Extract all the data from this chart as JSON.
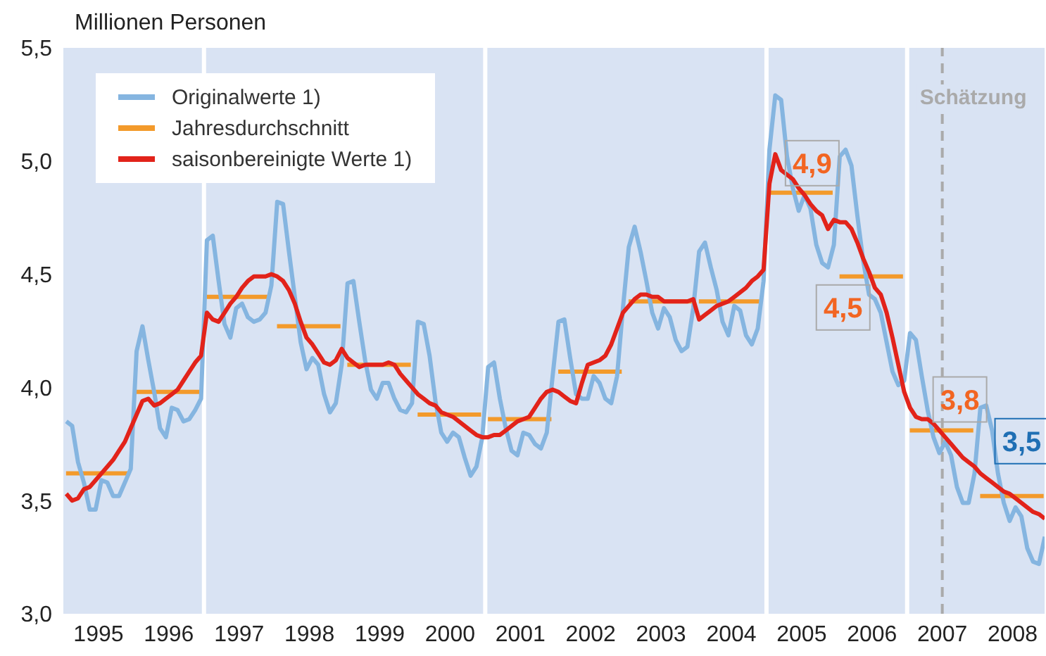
{
  "chart_data": {
    "type": "line",
    "ylabel": "Millionen Personen",
    "x": [
      "1995-01",
      "1995-02",
      "1995-03",
      "1995-04",
      "1995-05",
      "1995-06",
      "1995-07",
      "1995-08",
      "1995-09",
      "1995-10",
      "1995-11",
      "1995-12",
      "1996-01",
      "1996-02",
      "1996-03",
      "1996-04",
      "1996-05",
      "1996-06",
      "1996-07",
      "1996-08",
      "1996-09",
      "1996-10",
      "1996-11",
      "1996-12",
      "1997-01",
      "1997-02",
      "1997-03",
      "1997-04",
      "1997-05",
      "1997-06",
      "1997-07",
      "1997-08",
      "1997-09",
      "1997-10",
      "1997-11",
      "1997-12",
      "1998-01",
      "1998-02",
      "1998-03",
      "1998-04",
      "1998-05",
      "1998-06",
      "1998-07",
      "1998-08",
      "1998-09",
      "1998-10",
      "1998-11",
      "1998-12",
      "1999-01",
      "1999-02",
      "1999-03",
      "1999-04",
      "1999-05",
      "1999-06",
      "1999-07",
      "1999-08",
      "1999-09",
      "1999-10",
      "1999-11",
      "1999-12",
      "2000-01",
      "2000-02",
      "2000-03",
      "2000-04",
      "2000-05",
      "2000-06",
      "2000-07",
      "2000-08",
      "2000-09",
      "2000-10",
      "2000-11",
      "2000-12",
      "2001-01",
      "2001-02",
      "2001-03",
      "2001-04",
      "2001-05",
      "2001-06",
      "2001-07",
      "2001-08",
      "2001-09",
      "2001-10",
      "2001-11",
      "2001-12",
      "2002-01",
      "2002-02",
      "2002-03",
      "2002-04",
      "2002-05",
      "2002-06",
      "2002-07",
      "2002-08",
      "2002-09",
      "2002-10",
      "2002-11",
      "2002-12",
      "2003-01",
      "2003-02",
      "2003-03",
      "2003-04",
      "2003-05",
      "2003-06",
      "2003-07",
      "2003-08",
      "2003-09",
      "2003-10",
      "2003-11",
      "2003-12",
      "2004-01",
      "2004-02",
      "2004-03",
      "2004-04",
      "2004-05",
      "2004-06",
      "2004-07",
      "2004-08",
      "2004-09",
      "2004-10",
      "2004-11",
      "2004-12",
      "2005-01",
      "2005-02",
      "2005-03",
      "2005-04",
      "2005-05",
      "2005-06",
      "2005-07",
      "2005-08",
      "2005-09",
      "2005-10",
      "2005-11",
      "2005-12",
      "2006-01",
      "2006-02",
      "2006-03",
      "2006-04",
      "2006-05",
      "2006-06",
      "2006-07",
      "2006-08",
      "2006-09",
      "2006-10",
      "2006-11",
      "2006-12",
      "2007-01",
      "2007-02",
      "2007-03",
      "2007-04",
      "2007-05",
      "2007-06",
      "2007-07",
      "2007-08",
      "2007-09",
      "2007-10",
      "2007-11",
      "2007-12",
      "2008-01",
      "2008-02",
      "2008-03",
      "2008-04",
      "2008-05",
      "2008-06",
      "2008-07",
      "2008-08",
      "2008-09",
      "2008-10",
      "2008-11",
      "2008-12"
    ],
    "series": [
      {
        "name": "Originalwerte 1)",
        "color": "#85b5e0",
        "values": [
          3.85,
          3.83,
          3.67,
          3.58,
          3.46,
          3.46,
          3.59,
          3.58,
          3.52,
          3.52,
          3.58,
          3.64,
          4.16,
          4.27,
          4.12,
          3.98,
          3.82,
          3.78,
          3.91,
          3.9,
          3.85,
          3.86,
          3.9,
          3.95,
          4.65,
          4.67,
          4.47,
          4.28,
          4.22,
          4.35,
          4.37,
          4.31,
          4.29,
          4.3,
          4.33,
          4.45,
          4.82,
          4.81,
          4.6,
          4.4,
          4.2,
          4.08,
          4.13,
          4.1,
          3.97,
          3.89,
          3.93,
          4.1,
          4.46,
          4.47,
          4.29,
          4.12,
          3.99,
          3.95,
          4.02,
          4.02,
          3.95,
          3.9,
          3.89,
          3.93,
          4.29,
          4.28,
          4.14,
          3.94,
          3.8,
          3.76,
          3.8,
          3.78,
          3.69,
          3.61,
          3.65,
          3.78,
          4.09,
          4.11,
          3.95,
          3.82,
          3.72,
          3.7,
          3.8,
          3.79,
          3.75,
          3.73,
          3.8,
          4.05,
          4.29,
          4.3,
          4.13,
          3.97,
          3.95,
          3.95,
          4.05,
          4.02,
          3.95,
          3.93,
          4.05,
          4.35,
          4.62,
          4.71,
          4.6,
          4.47,
          4.33,
          4.26,
          4.35,
          4.31,
          4.21,
          4.16,
          4.18,
          4.35,
          4.6,
          4.64,
          4.53,
          4.43,
          4.29,
          4.23,
          4.36,
          4.34,
          4.23,
          4.19,
          4.26,
          4.47,
          5.05,
          5.29,
          5.27,
          5.02,
          4.88,
          4.78,
          4.85,
          4.79,
          4.63,
          4.55,
          4.53,
          4.63,
          5.02,
          5.05,
          4.98,
          4.76,
          4.56,
          4.41,
          4.39,
          4.33,
          4.2,
          4.07,
          4.01,
          4.03,
          4.24,
          4.21,
          4.05,
          3.9,
          3.78,
          3.71,
          3.76,
          3.7,
          3.56,
          3.49,
          3.49,
          3.62,
          3.91,
          3.92,
          3.81,
          3.62,
          3.49,
          3.41,
          3.47,
          3.43,
          3.29,
          3.23,
          3.22,
          3.34
        ]
      },
      {
        "name": "Jahresdurchschnitt",
        "color": "#f39a2b",
        "x": [
          "1995-01-15",
          "1995-12-10",
          "1995-12-20",
          "1996-01-15",
          "1996-12-10",
          "1996-12-20",
          "1997-01-15",
          "1997-12-10",
          "1997-12-20",
          "1998-01-15",
          "1998-12-10",
          "1998-12-20",
          "1999-01-15",
          "1999-12-10",
          "1999-12-20",
          "2000-01-15",
          "2000-12-10",
          "2000-12-20",
          "2001-01-15",
          "2001-12-10",
          "2001-12-20",
          "2002-01-15",
          "2002-12-10",
          "2002-12-20",
          "2003-01-15",
          "2003-12-10",
          "2003-12-20",
          "2004-01-15",
          "2004-12-10",
          "2004-12-20",
          "2005-01-15",
          "2005-12-10",
          "2005-12-20",
          "2006-01-15",
          "2006-12-10",
          "2006-12-20",
          "2007-01-15",
          "2007-12-10",
          "2007-12-20",
          "2008-01-15",
          "2008-12-10"
        ],
        "values": [
          3.62,
          3.62,
          null,
          3.98,
          3.98,
          null,
          4.4,
          4.4,
          null,
          4.27,
          4.27,
          null,
          4.1,
          4.1,
          null,
          3.88,
          3.88,
          null,
          3.86,
          3.86,
          null,
          4.07,
          4.07,
          null,
          4.38,
          4.38,
          null,
          4.38,
          4.38,
          null,
          4.86,
          4.86,
          null,
          4.49,
          4.49,
          null,
          3.81,
          3.81,
          null,
          3.52,
          3.52
        ],
        "value_labels": [
          null,
          null,
          null,
          null,
          null,
          null,
          null,
          null,
          null,
          null,
          null,
          null,
          null,
          null,
          null,
          null,
          null,
          null,
          null,
          null,
          null,
          null,
          null,
          null,
          null,
          null,
          null,
          null,
          null,
          null,
          "4,9",
          null,
          null,
          "4,5",
          null,
          null,
          "3,8",
          null,
          null,
          "3,5",
          null
        ]
      },
      {
        "name": "saisonbereinigte Werte 1)",
        "color": "#e2231a",
        "values": [
          3.53,
          3.5,
          3.51,
          3.55,
          3.56,
          3.59,
          3.62,
          3.65,
          3.68,
          3.72,
          3.76,
          3.82,
          3.88,
          3.94,
          3.95,
          3.92,
          3.93,
          3.95,
          3.97,
          3.99,
          4.03,
          4.07,
          4.11,
          4.14,
          4.33,
          4.3,
          4.29,
          4.33,
          4.37,
          4.4,
          4.44,
          4.47,
          4.49,
          4.49,
          4.49,
          4.5,
          4.49,
          4.47,
          4.43,
          4.37,
          4.29,
          4.22,
          4.19,
          4.15,
          4.11,
          4.1,
          4.12,
          4.17,
          4.13,
          4.11,
          4.09,
          4.1,
          4.1,
          4.1,
          4.1,
          4.11,
          4.1,
          4.06,
          4.03,
          4.0,
          3.97,
          3.95,
          3.93,
          3.92,
          3.89,
          3.88,
          3.87,
          3.85,
          3.83,
          3.81,
          3.79,
          3.78,
          3.78,
          3.79,
          3.79,
          3.81,
          3.83,
          3.85,
          3.86,
          3.87,
          3.91,
          3.95,
          3.98,
          3.99,
          3.98,
          3.96,
          3.94,
          3.93,
          4.02,
          4.1,
          4.11,
          4.12,
          4.14,
          4.19,
          4.26,
          4.33,
          4.36,
          4.39,
          4.41,
          4.41,
          4.4,
          4.4,
          4.38,
          4.38,
          4.38,
          4.38,
          4.38,
          4.39,
          4.3,
          4.32,
          4.34,
          4.36,
          4.37,
          4.38,
          4.4,
          4.42,
          4.44,
          4.47,
          4.49,
          4.52,
          4.9,
          5.03,
          4.96,
          4.94,
          4.92,
          4.88,
          4.85,
          4.81,
          4.78,
          4.76,
          4.7,
          4.74,
          4.73,
          4.73,
          4.7,
          4.64,
          4.57,
          4.51,
          4.44,
          4.41,
          4.33,
          4.22,
          4.1,
          3.98,
          3.91,
          3.87,
          3.86,
          3.86,
          3.84,
          3.81,
          3.78,
          3.75,
          3.72,
          3.69,
          3.67,
          3.65,
          3.62,
          3.6,
          3.58,
          3.56,
          3.54,
          3.53,
          3.51,
          3.49,
          3.47,
          3.45,
          3.44,
          3.42
        ]
      }
    ],
    "xlim": [
      "1995-01-01",
      "2008-12-15"
    ],
    "xticks": [
      {
        "value": "1995-07-01",
        "label": "1995"
      },
      {
        "value": "1996-07-01",
        "label": "1996"
      },
      {
        "value": "1997-07-01",
        "label": "1997"
      },
      {
        "value": "1998-07-01",
        "label": "1998"
      },
      {
        "value": "1999-07-01",
        "label": "1999"
      },
      {
        "value": "2000-07-01",
        "label": "2000"
      },
      {
        "value": "2001-07-01",
        "label": "2001"
      },
      {
        "value": "2002-07-01",
        "label": "2002"
      },
      {
        "value": "2003-07-01",
        "label": "2003"
      },
      {
        "value": "2004-07-01",
        "label": "2004"
      },
      {
        "value": "2005-07-01",
        "label": "2005"
      },
      {
        "value": "2006-07-01",
        "label": "2006"
      },
      {
        "value": "2007-07-01",
        "label": "2007"
      },
      {
        "value": "2008-07-01",
        "label": "2008"
      }
    ],
    "ylim": [
      3.0,
      5.5
    ],
    "yticks": [
      {
        "value": 3.0,
        "label": "3,0"
      },
      {
        "value": 3.5,
        "label": "3,5"
      },
      {
        "value": 4.0,
        "label": "4,0"
      },
      {
        "value": 4.5,
        "label": "4,5"
      },
      {
        "value": 5.0,
        "label": "5,0"
      },
      {
        "value": 5.5,
        "label": "5,5"
      }
    ],
    "ref_lines": [
      {
        "axis": "x",
        "value": "1997-01-01",
        "color": "#ffffff"
      },
      {
        "axis": "x",
        "value": "2001-01-01",
        "color": "#ffffff"
      },
      {
        "axis": "x",
        "value": "2005-01-01",
        "color": "#ffffff"
      },
      {
        "axis": "x",
        "value": "2007-01-01",
        "color": "#ffffff"
      },
      {
        "axis": "x",
        "value": "2007-07-01",
        "color": "#aaaaaa",
        "line_style": "dashed",
        "label": "Schätzung"
      }
    ],
    "legend": "top left"
  }
}
